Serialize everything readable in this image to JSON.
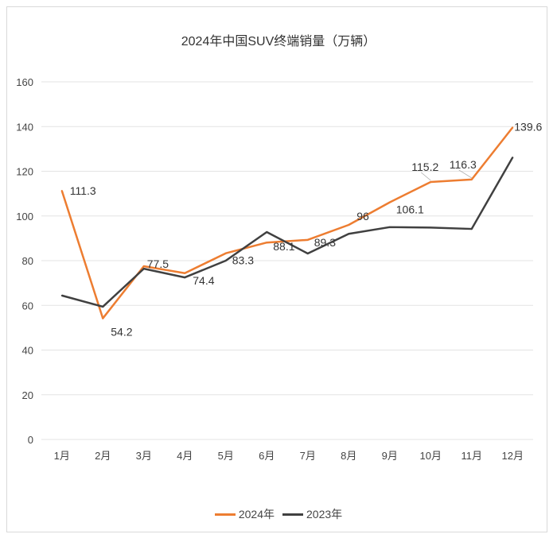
{
  "chart_data": {
    "type": "line",
    "title": "2024年中国SUV终端销量（万辆）",
    "xlabel": "",
    "ylabel": "",
    "categories": [
      "1月",
      "2月",
      "3月",
      "4月",
      "5月",
      "6月",
      "7月",
      "8月",
      "9月",
      "10月",
      "11月",
      "12月"
    ],
    "ylim": [
      0,
      160
    ],
    "yticks": [
      0,
      20,
      40,
      60,
      80,
      100,
      120,
      140,
      160
    ],
    "grid": true,
    "legend": "bottom",
    "series": [
      {
        "name": "2024年",
        "color": "#ED7D31",
        "values": [
          111.3,
          54.2,
          77.5,
          74.4,
          83.3,
          88.1,
          89.3,
          96,
          106.1,
          115.2,
          116.3,
          139.6
        ],
        "labels": [
          "111.3",
          "54.2",
          "77.5",
          "74.4",
          "83.3",
          "88.1",
          "89.3",
          "96",
          "106.1",
          "115.2",
          "116.3",
          "139.6"
        ]
      },
      {
        "name": "2023年",
        "color": "#404040",
        "values": [
          64.4,
          59.4,
          76.4,
          72.5,
          80.0,
          92.8,
          83.2,
          92.0,
          95.0,
          94.8,
          94.2,
          126.2
        ]
      }
    ]
  }
}
